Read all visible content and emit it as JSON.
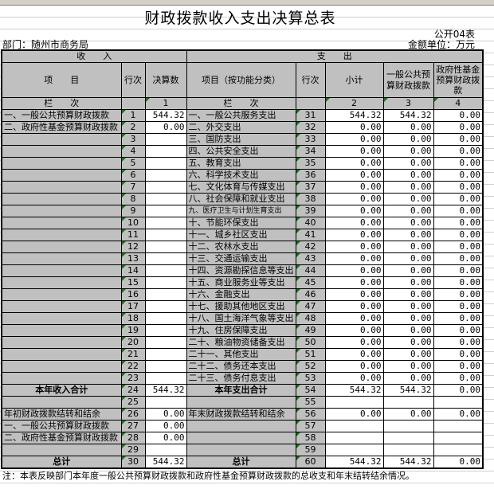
{
  "sheet": {
    "columns": [
      "A",
      "B",
      "C",
      "D",
      "E",
      "F",
      "G",
      "H"
    ]
  },
  "title": "财政拨款收入支出决算总表",
  "form_no": "公开04表",
  "department": "部门：随州市商务局",
  "unit": "金额单位：万元",
  "headers": {
    "income": "收　　入",
    "expense": "支　　出",
    "item": "项　　目",
    "row_no": "行次",
    "final_amount": "决算数",
    "item_func": "项目（按功能分类）",
    "row_no2": "行次",
    "subtotal": "小计",
    "general_budget": "一般公共预算财政拨款",
    "gov_fund": "政府性基金预算财政拨款",
    "column_index": "栏　　次",
    "col1": "1",
    "col2": "2",
    "col3": "3",
    "col4": "4"
  },
  "rows": [
    {
      "l": [
        "一、一般公共预算财政拨款",
        "1",
        "544.32"
      ],
      "r": [
        "一、一般公共服务支出",
        "31",
        "544.32",
        "544.32",
        "0.00"
      ]
    },
    {
      "l": [
        "二、政府性基金预算财政拨款",
        "2",
        "0.00"
      ],
      "r": [
        "二、外交支出",
        "32",
        "0.00",
        "0.00",
        "0.00"
      ]
    },
    {
      "l": [
        "",
        "3",
        ""
      ],
      "r": [
        "三、国防支出",
        "33",
        "0.00",
        "0.00",
        "0.00"
      ]
    },
    {
      "l": [
        "",
        "4",
        ""
      ],
      "r": [
        "四、公共安全支出",
        "34",
        "0.00",
        "0.00",
        "0.00"
      ]
    },
    {
      "l": [
        "",
        "5",
        ""
      ],
      "r": [
        "五、教育支出",
        "35",
        "0.00",
        "0.00",
        "0.00"
      ]
    },
    {
      "l": [
        "",
        "6",
        ""
      ],
      "r": [
        "六、科学技术支出",
        "36",
        "0.00",
        "0.00",
        "0.00"
      ]
    },
    {
      "l": [
        "",
        "7",
        ""
      ],
      "r": [
        "七、文化体育与传媒支出",
        "37",
        "0.00",
        "0.00",
        "0.00"
      ]
    },
    {
      "l": [
        "",
        "8",
        ""
      ],
      "r": [
        "八、社会保障和就业支出",
        "38",
        "0.00",
        "0.00",
        "0.00"
      ]
    },
    {
      "l": [
        "",
        "9",
        ""
      ],
      "r": [
        "九、医疗卫生与计划生育支出",
        "39",
        "0.00",
        "0.00",
        "0.00"
      ]
    },
    {
      "l": [
        "",
        "10",
        ""
      ],
      "r": [
        "十、节能环保支出",
        "40",
        "0.00",
        "0.00",
        "0.00"
      ]
    },
    {
      "l": [
        "",
        "11",
        ""
      ],
      "r": [
        "十一、城乡社区支出",
        "41",
        "0.00",
        "0.00",
        "0.00"
      ]
    },
    {
      "l": [
        "",
        "12",
        ""
      ],
      "r": [
        "十二、农林水支出",
        "42",
        "0.00",
        "0.00",
        "0.00"
      ]
    },
    {
      "l": [
        "",
        "13",
        ""
      ],
      "r": [
        "十三、交通运输支出",
        "43",
        "0.00",
        "0.00",
        "0.00"
      ]
    },
    {
      "l": [
        "",
        "14",
        ""
      ],
      "r": [
        "十四、资源勘探信息等支出",
        "44",
        "0.00",
        "0.00",
        "0.00"
      ]
    },
    {
      "l": [
        "",
        "15",
        ""
      ],
      "r": [
        "十五、商业服务业等支出",
        "45",
        "0.00",
        "0.00",
        "0.00"
      ]
    },
    {
      "l": [
        "",
        "16",
        ""
      ],
      "r": [
        "十六、金融支出",
        "46",
        "0.00",
        "0.00",
        "0.00"
      ]
    },
    {
      "l": [
        "",
        "17",
        ""
      ],
      "r": [
        "十七、援助其他地区支出",
        "47",
        "0.00",
        "0.00",
        "0.00"
      ]
    },
    {
      "l": [
        "",
        "18",
        ""
      ],
      "r": [
        "十八、国土海洋气象等支出",
        "48",
        "0.00",
        "0.00",
        "0.00"
      ]
    },
    {
      "l": [
        "",
        "19",
        ""
      ],
      "r": [
        "十九、住房保障支出",
        "49",
        "0.00",
        "0.00",
        "0.00"
      ]
    },
    {
      "l": [
        "",
        "20",
        ""
      ],
      "r": [
        "二十、粮油物资储备支出",
        "50",
        "0.00",
        "0.00",
        "0.00"
      ]
    },
    {
      "l": [
        "",
        "21",
        ""
      ],
      "r": [
        "二十一、其他支出",
        "51",
        "0.00",
        "0.00",
        "0.00"
      ]
    },
    {
      "l": [
        "",
        "22",
        ""
      ],
      "r": [
        "二十二、债务还本支出",
        "52",
        "0.00",
        "0.00",
        "0.00"
      ]
    },
    {
      "l": [
        "",
        "23",
        ""
      ],
      "r": [
        "二十三、债务付息支出",
        "53",
        "0.00",
        "0.00",
        "0.00"
      ]
    },
    {
      "l": [
        "本年收入合计",
        "24",
        "544.32"
      ],
      "r": [
        "本年支出合计",
        "54",
        "544.32",
        "544.32",
        "0.00"
      ],
      "bold": true
    },
    {
      "l": [
        "",
        "25",
        ""
      ],
      "r": [
        "",
        "55",
        "",
        "",
        ""
      ]
    },
    {
      "l": [
        "年初财政拨款结转和结余",
        "26",
        "0.00"
      ],
      "r": [
        "年末财政拨款结转和结余",
        "56",
        "0.00",
        "0.00",
        "0.00"
      ]
    },
    {
      "l": [
        "一、一般公共预算财政拨款",
        "27",
        "0.00"
      ],
      "r": [
        "",
        "57",
        "",
        "",
        ""
      ]
    },
    {
      "l": [
        "二、政府性基金预算财政拨款",
        "28",
        "0.00"
      ],
      "r": [
        "",
        "58",
        "",
        "",
        ""
      ]
    },
    {
      "l": [
        "",
        "29",
        ""
      ],
      "r": [
        "",
        "59",
        "",
        "",
        ""
      ]
    },
    {
      "l": [
        "总计",
        "30",
        "544.32"
      ],
      "r": [
        "总计",
        "60",
        "544.32",
        "544.32",
        "0.00"
      ],
      "bold": true
    }
  ],
  "note": "注：本表反映部门本年度一般公共预算财政拨款和政府性基金预算财政拨款的总收支和年末结转结余情况。"
}
